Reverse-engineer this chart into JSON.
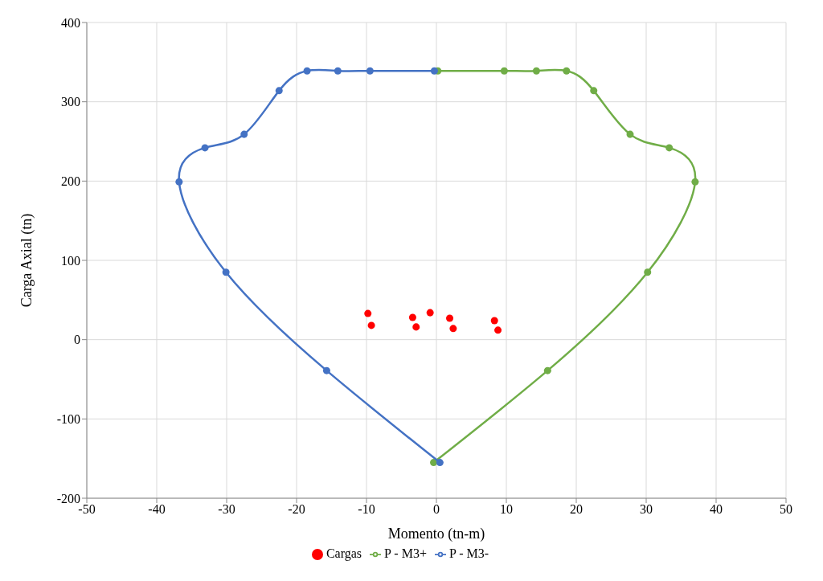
{
  "chart_data": {
    "type": "scatter",
    "xlabel": "Momento (tn-m)",
    "ylabel": "Carga Axial (tn)",
    "xlim": [
      -50,
      50
    ],
    "xticks": [
      -50,
      -40,
      -30,
      -20,
      -10,
      0,
      10,
      20,
      30,
      40,
      50
    ],
    "ylim": [
      -200,
      400
    ],
    "yticks": [
      -200,
      -100,
      0,
      100,
      200,
      300,
      400
    ],
    "grid": true,
    "legend": "bottom",
    "marker": "circle",
    "series": [
      {
        "name": "Cargas",
        "type": "scatter",
        "color": "#ff0000",
        "x": [
          -9.8,
          -9.3,
          -3.4,
          -2.9,
          -0.9,
          1.9,
          2.4,
          8.3,
          8.8
        ],
        "values": [
          33,
          18,
          28,
          16,
          34,
          27,
          14,
          24,
          12
        ]
      },
      {
        "name": "P - M3+",
        "type": "line",
        "color": "#70ad47",
        "x": [
          0.2,
          9.7,
          14.3,
          18.6,
          22.5,
          27.7,
          33.3,
          37.0,
          30.2,
          15.9,
          -0.4
        ],
        "values": [
          339,
          339,
          339,
          339,
          314,
          259,
          242,
          199,
          85,
          -39,
          -155
        ]
      },
      {
        "name": "P - M3-",
        "type": "line",
        "color": "#4472c4",
        "x": [
          -0.3,
          -9.5,
          -14.1,
          -18.5,
          -22.5,
          -27.5,
          -33.1,
          -36.8,
          -30.1,
          -15.7,
          0.5
        ],
        "values": [
          339,
          339,
          339,
          339,
          314,
          259,
          242,
          199,
          85,
          -39,
          -155
        ]
      }
    ]
  }
}
